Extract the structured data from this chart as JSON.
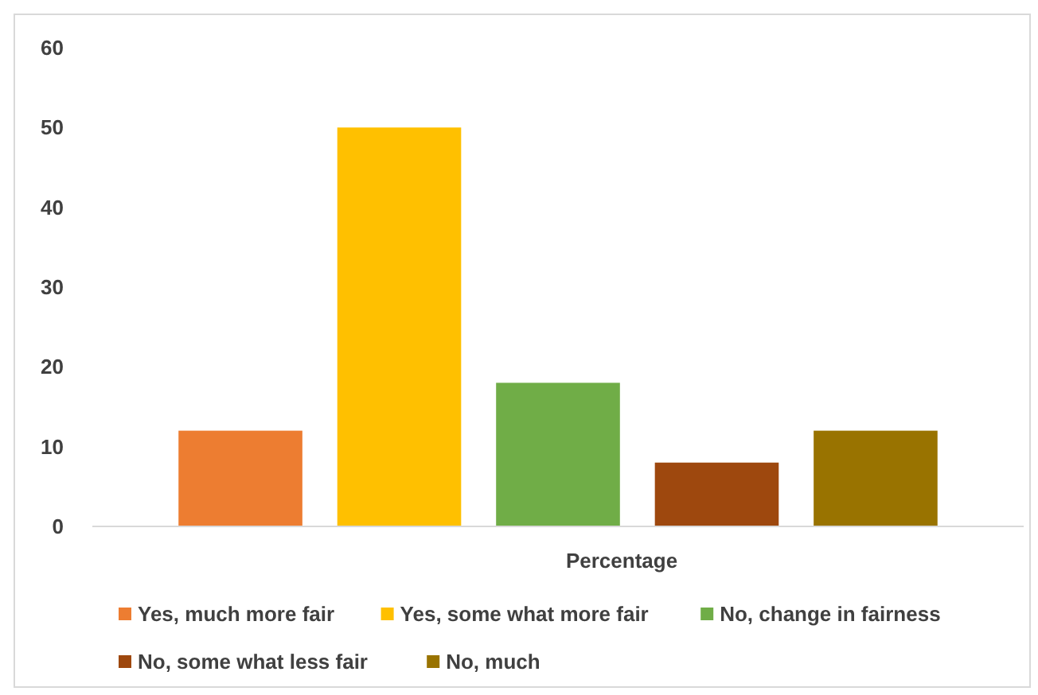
{
  "chart_data": {
    "type": "bar",
    "categories": [
      "Percentage"
    ],
    "series": [
      {
        "name": "Yes, much more fair",
        "color": "#ed7d31",
        "values": [
          12
        ]
      },
      {
        "name": "Yes, some what more fair",
        "color": "#ffc000",
        "values": [
          50
        ]
      },
      {
        "name": "No, change in fairness",
        "color": "#70ad47",
        "values": [
          18
        ]
      },
      {
        "name": "No, some what less fair",
        "color": "#9e480e",
        "values": [
          8
        ]
      },
      {
        "name": "No, much",
        "color": "#997300",
        "values": [
          12
        ]
      }
    ],
    "ylim": [
      0,
      60
    ],
    "yticks": [
      0,
      10,
      20,
      30,
      40,
      50,
      60
    ],
    "grid": false,
    "legend": "bottom"
  }
}
